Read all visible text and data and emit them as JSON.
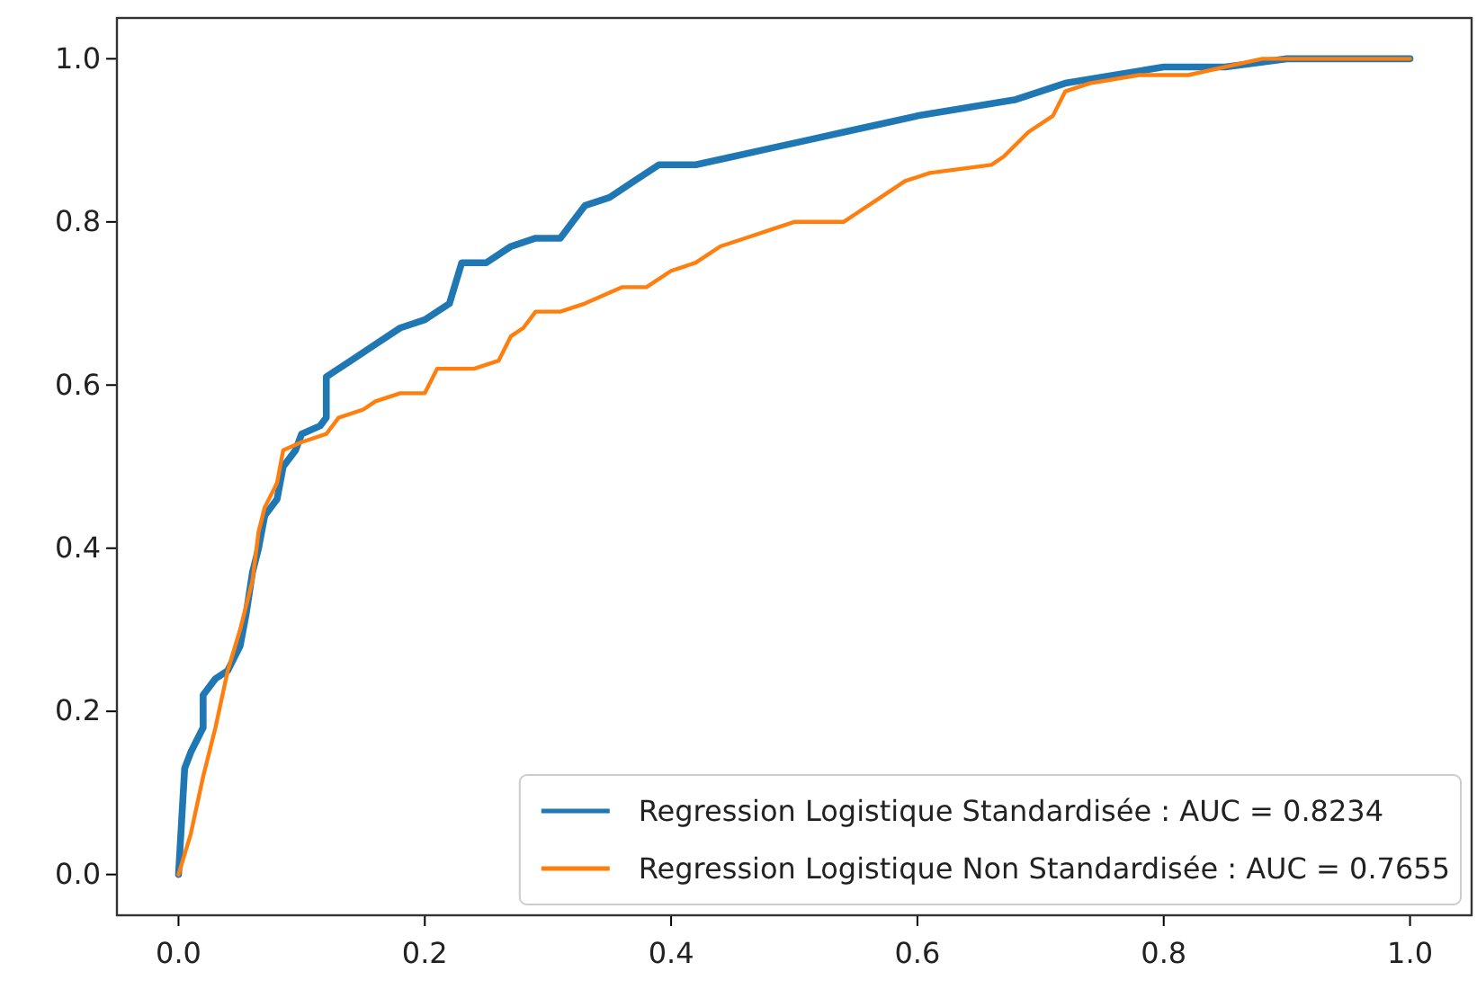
{
  "chart_data": {
    "type": "line",
    "xlim": [
      -0.05,
      1.05
    ],
    "ylim": [
      -0.05,
      1.05
    ],
    "xticks": [
      {
        "value": 0,
        "label": "0.0"
      },
      0.2,
      0.4,
      0.6,
      0.8,
      {
        "value": 1,
        "label": "1.0"
      }
    ],
    "yticks": [
      {
        "value": 0,
        "label": "0.0"
      },
      0.2,
      0.4,
      0.6,
      0.8,
      {
        "value": 1,
        "label": "1.0"
      }
    ],
    "grid": false,
    "legend": "bottom right",
    "line_style": "solid",
    "marker": "none",
    "series": [
      {
        "name": "Regression Logistique Standardisée : AUC = 0.8234",
        "color": "#1f77b4",
        "x": [
          0,
          0.005,
          0.01,
          0.02,
          0.02,
          0.03,
          0.04,
          0.05,
          0.055,
          0.06,
          0.065,
          0.07,
          0.08,
          0.085,
          0.095,
          0.1,
          0.115,
          0.12,
          0.12,
          0.14,
          0.16,
          0.18,
          0.2,
          0.22,
          0.23,
          0.25,
          0.27,
          0.29,
          0.31,
          0.32,
          0.33,
          0.35,
          0.37,
          0.39,
          0.42,
          0.45,
          0.48,
          0.51,
          0.54,
          0.57,
          0.6,
          0.64,
          0.68,
          0.7,
          0.72,
          0.76,
          0.8,
          0.85,
          0.9,
          0.99,
          1.0
        ],
        "values": [
          0,
          0.13,
          0.15,
          0.18,
          0.22,
          0.24,
          0.25,
          0.28,
          0.32,
          0.37,
          0.4,
          0.44,
          0.46,
          0.5,
          0.52,
          0.54,
          0.55,
          0.56,
          0.61,
          0.63,
          0.65,
          0.67,
          0.68,
          0.7,
          0.75,
          0.75,
          0.77,
          0.78,
          0.78,
          0.8,
          0.82,
          0.83,
          0.85,
          0.87,
          0.87,
          0.88,
          0.89,
          0.9,
          0.91,
          0.92,
          0.93,
          0.94,
          0.95,
          0.96,
          0.97,
          0.98,
          0.99,
          0.99,
          1.0,
          1.0,
          1.0
        ]
      },
      {
        "name": "Regression Logistique Non Standardisée : AUC = 0.7655",
        "color": "#ff7f0e",
        "x": [
          0,
          0.01,
          0.02,
          0.03,
          0.04,
          0.05,
          0.06,
          0.065,
          0.07,
          0.08,
          0.085,
          0.1,
          0.12,
          0.13,
          0.15,
          0.16,
          0.18,
          0.2,
          0.21,
          0.24,
          0.26,
          0.27,
          0.28,
          0.29,
          0.31,
          0.33,
          0.36,
          0.38,
          0.4,
          0.42,
          0.44,
          0.46,
          0.48,
          0.5,
          0.54,
          0.55,
          0.57,
          0.59,
          0.61,
          0.66,
          0.67,
          0.69,
          0.71,
          0.72,
          0.74,
          0.78,
          0.82,
          0.85,
          0.88,
          1.0
        ],
        "values": [
          0,
          0.05,
          0.12,
          0.18,
          0.25,
          0.3,
          0.36,
          0.42,
          0.45,
          0.48,
          0.52,
          0.53,
          0.54,
          0.56,
          0.57,
          0.58,
          0.59,
          0.59,
          0.62,
          0.62,
          0.63,
          0.66,
          0.67,
          0.69,
          0.69,
          0.7,
          0.72,
          0.72,
          0.74,
          0.75,
          0.77,
          0.78,
          0.79,
          0.8,
          0.8,
          0.81,
          0.83,
          0.85,
          0.86,
          0.87,
          0.88,
          0.91,
          0.93,
          0.96,
          0.97,
          0.98,
          0.98,
          0.99,
          1.0,
          1.0
        ]
      }
    ]
  }
}
